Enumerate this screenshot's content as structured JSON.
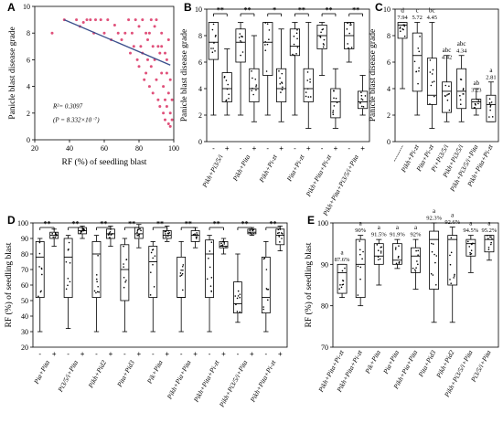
{
  "chart_data": [
    {
      "panel": "A",
      "type": "scatter",
      "ylabel": "Panicle blast disease grade",
      "xlabel": "RF (%) of seedling blast",
      "xlim": [
        20,
        100
      ],
      "ylim": [
        0,
        10
      ],
      "x_ticks": [
        "20",
        "40",
        "60",
        "80",
        "100"
      ],
      "y_ticks": [
        "0",
        "2",
        "4",
        "6",
        "8",
        "10"
      ],
      "fit_line": {
        "x": [
          37,
          98
        ],
        "y": [
          9.0,
          5.6
        ]
      },
      "stat_r2": "R²= 0.3097",
      "stat_p": "(P = 8.332×10⁻⁷)",
      "points": [
        [
          30,
          8.0
        ],
        [
          37,
          9.0
        ],
        [
          44,
          9.0
        ],
        [
          46,
          8.5
        ],
        [
          48,
          8.8
        ],
        [
          50,
          9.0
        ],
        [
          52,
          9.0
        ],
        [
          54,
          8.0
        ],
        [
          55,
          9.0
        ],
        [
          58,
          9.0
        ],
        [
          60,
          8.0
        ],
        [
          62,
          9.0
        ],
        [
          64,
          7.5
        ],
        [
          66,
          8.6
        ],
        [
          68,
          8.0
        ],
        [
          70,
          7.5
        ],
        [
          72,
          8.0
        ],
        [
          74,
          9.0
        ],
        [
          75,
          6.5
        ],
        [
          76,
          8.0
        ],
        [
          77,
          7.0
        ],
        [
          78,
          9.0
        ],
        [
          79,
          6.0
        ],
        [
          80,
          8.5
        ],
        [
          80,
          5.5
        ],
        [
          81,
          7.0
        ],
        [
          82,
          6.5
        ],
        [
          82,
          9.0
        ],
        [
          83,
          4.5
        ],
        [
          84,
          8.0
        ],
        [
          84,
          5.0
        ],
        [
          85,
          6.0
        ],
        [
          85,
          7.5
        ],
        [
          86,
          8.0
        ],
        [
          86,
          4.0
        ],
        [
          87,
          9.0
        ],
        [
          87,
          5.5
        ],
        [
          88,
          7.0
        ],
        [
          88,
          3.5
        ],
        [
          89,
          6.0
        ],
        [
          89,
          8.5
        ],
        [
          90,
          9.0
        ],
        [
          90,
          4.5
        ],
        [
          91,
          7.0
        ],
        [
          91,
          3.0
        ],
        [
          92,
          6.5
        ],
        [
          92,
          2.5
        ],
        [
          93,
          8.0
        ],
        [
          93,
          5.0
        ],
        [
          94,
          4.0
        ],
        [
          94,
          2.0
        ],
        [
          95,
          6.5
        ],
        [
          95,
          3.0
        ],
        [
          95,
          1.5
        ],
        [
          96,
          5.0
        ],
        [
          96,
          2.5
        ],
        [
          97,
          7.5
        ],
        [
          97,
          3.5
        ],
        [
          97,
          1.2
        ],
        [
          98,
          4.5
        ],
        [
          98,
          2.0
        ],
        [
          98,
          1.0
        ],
        [
          99,
          3.0
        ],
        [
          99,
          1.5
        ],
        [
          93,
          7.0
        ],
        [
          96,
          6.0
        ]
      ]
    },
    {
      "panel": "B",
      "type": "box",
      "ylabel": "Panicle blast disease grade",
      "ylim": [
        0,
        10
      ],
      "y_ticks": [
        "0",
        "2",
        "4",
        "6",
        "8",
        "10"
      ],
      "groups": [
        "Pikh+Pi3/5/i",
        "Pikh+Pita",
        "Pikh+Pi-zt",
        "Pita+Pi-zt",
        "Pikh+Pita+Pi-zt",
        "Pikh+Pita+Pi3/5/i+Pita"
      ],
      "signs": [
        "-",
        "+"
      ],
      "sig": [
        "**",
        "**",
        "*",
        "**",
        "**",
        "**"
      ],
      "boxes": [
        {
          "min": 2,
          "q1": 6.2,
          "med": 7.5,
          "q3": 9,
          "max": 9
        },
        {
          "min": 2,
          "q1": 3.0,
          "med": 4.0,
          "q3": 5.2,
          "max": 7.0
        },
        {
          "min": 2,
          "q1": 6.0,
          "med": 7.5,
          "q3": 8.5,
          "max": 9
        },
        {
          "min": 1.5,
          "q1": 3.0,
          "med": 4.0,
          "q3": 5.5,
          "max": 8
        },
        {
          "min": 2,
          "q1": 5.0,
          "med": 7.5,
          "q3": 9,
          "max": 9
        },
        {
          "min": 1.5,
          "q1": 3.0,
          "med": 4.0,
          "q3": 5.5,
          "max": 8.5
        },
        {
          "min": 2,
          "q1": 6.5,
          "med": 7.2,
          "q3": 8.5,
          "max": 9
        },
        {
          "min": 1,
          "q1": 3.0,
          "med": 4.0,
          "q3": 5.5,
          "max": 9
        },
        {
          "min": 5,
          "q1": 7.0,
          "med": 8.0,
          "q3": 8.8,
          "max": 9
        },
        {
          "min": 1,
          "q1": 1.8,
          "med": 3.0,
          "q3": 4.0,
          "max": 5.5
        },
        {
          "min": 6,
          "q1": 7.0,
          "med": 8.0,
          "q3": 9,
          "max": 9
        },
        {
          "min": 2,
          "q1": 2.5,
          "med": 3.0,
          "q3": 3.8,
          "max": 5
        }
      ]
    },
    {
      "panel": "C",
      "type": "box",
      "ylabel": "Panicle blast disease grade",
      "ylim": [
        0,
        10
      ],
      "y_ticks": [
        "0",
        "2",
        "4",
        "6",
        "8",
        "10"
      ],
      "groups": [
        "--------",
        "Pikh+Pi-zt",
        "Pita+Pi-zt",
        "Pi+Pi3/5/i",
        "Pikh+Pi3/5/i",
        "Pikh+Pi3/5/i+Pita",
        "Pikh+Pita+Pi-zt"
      ],
      "letters": [
        "d",
        "c",
        "bc",
        "abc",
        "abc",
        "ab",
        "a"
      ],
      "means": [
        "7.94",
        "5.72",
        "4.45",
        "4.42",
        "4.34",
        "3.23",
        "2.81"
      ],
      "letters_show_mean_below_letter": [
        true,
        true,
        true,
        false,
        true,
        false,
        true
      ],
      "boxes": [
        {
          "min": 4,
          "q1": 7.8,
          "med": 8.8,
          "q3": 9,
          "max": 9
        },
        {
          "min": 2,
          "q1": 3.8,
          "med": 6.5,
          "q3": 8.2,
          "max": 9
        },
        {
          "min": 1,
          "q1": 2.8,
          "med": 3.5,
          "q3": 6.3,
          "max": 9
        },
        {
          "min": 1.5,
          "q1": 2.2,
          "med": 3.8,
          "q3": 4.5,
          "max": 6.5
        },
        {
          "min": 1.5,
          "q1": 2.5,
          "med": 3.8,
          "q3": 5.5,
          "max": 6.5
        },
        {
          "min": 2,
          "q1": 2.5,
          "med": 3.0,
          "q3": 3.2,
          "max": 4.0
        },
        {
          "min": 1.5,
          "q1": 1.5,
          "med": 2.8,
          "q3": 3.5,
          "max": 4.5
        }
      ]
    },
    {
      "panel": "D",
      "type": "box",
      "ylabel": "RF (%) of seedling blast",
      "ylim": [
        20,
        100
      ],
      "y_ticks": [
        "20",
        "30",
        "40",
        "50",
        "60",
        "70",
        "80",
        "90",
        "100"
      ],
      "groups": [
        "Pia+Pita",
        "Pi3/5/i+Pita",
        "Pikh+Pid2",
        "Pita+Pid3",
        "Pik+Pita",
        "Pikh+Pia+Pita",
        "Pikh+Pita+Pi-zt",
        "Pikh+Pi3/5/i+Pita",
        "Pikh+Pita+Pi-zt"
      ],
      "signs": [
        "-",
        "+"
      ],
      "sig": [
        "**",
        "**",
        "**",
        "**",
        "**",
        "**",
        "**",
        "**",
        "**"
      ],
      "boxes": [
        {
          "min": 30,
          "q1": 52,
          "med": 78,
          "q3": 88,
          "max": 90
        },
        {
          "min": 85,
          "q1": 90,
          "med": 92,
          "q3": 94,
          "max": 96
        },
        {
          "min": 32,
          "q1": 52,
          "med": 78,
          "q3": 90,
          "max": 92
        },
        {
          "min": 90,
          "q1": 93,
          "med": 95,
          "q3": 97,
          "max": 98
        },
        {
          "min": 30,
          "q1": 52,
          "med": 80,
          "q3": 88,
          "max": 92
        },
        {
          "min": 85,
          "q1": 90,
          "med": 93,
          "q3": 96,
          "max": 98
        },
        {
          "min": 30,
          "q1": 50,
          "med": 70,
          "q3": 86,
          "max": 90
        },
        {
          "min": 84,
          "q1": 90,
          "med": 93,
          "q3": 97,
          "max": 99
        },
        {
          "min": 30,
          "q1": 52,
          "med": 75,
          "q3": 85,
          "max": 88
        },
        {
          "min": 88,
          "q1": 90,
          "med": 92,
          "q3": 95,
          "max": 98
        },
        {
          "min": 30,
          "q1": 52,
          "med": 52,
          "q3": 78,
          "max": 88
        },
        {
          "min": 84,
          "q1": 88,
          "med": 92,
          "q3": 95,
          "max": 97
        },
        {
          "min": 30,
          "q1": 52,
          "med": 80,
          "q3": 89,
          "max": 92
        },
        {
          "min": 80,
          "q1": 84,
          "med": 85,
          "q3": 88,
          "max": 90
        },
        {
          "min": 36,
          "q1": 42,
          "med": 48,
          "q3": 62,
          "max": 80
        },
        {
          "min": 92,
          "q1": 93,
          "med": 94,
          "q3": 96,
          "max": 97
        },
        {
          "min": 30,
          "q1": 42,
          "med": 52,
          "q3": 78,
          "max": 88
        },
        {
          "min": 82,
          "q1": 86,
          "med": 92,
          "q3": 96,
          "max": 98
        }
      ]
    },
    {
      "panel": "E",
      "type": "box",
      "ylabel": "RF (%) of seedling blast",
      "ylim": [
        70,
        100
      ],
      "y_ticks": [
        "70",
        "80",
        "90",
        "100"
      ],
      "groups": [
        "Pikh+Pita+Pi-zt",
        "Pikh+Pita+Pi-zt",
        "Pik+Pita",
        "Pia+Pita",
        "Pikh+Pia+Pita",
        "Pita+Pid3",
        "Pikh+Pid2",
        "Pikh+Pi3/5/i+Pita",
        "Pi3/5/i+Pita"
      ],
      "letters": [
        "a",
        "a",
        "a",
        "a",
        "a",
        "a",
        "a",
        "a",
        "a"
      ],
      "means": [
        "87.6%",
        "90%",
        "91.5%",
        "91.9%",
        "92%",
        "92.3%",
        "92.6%",
        "94.5%",
        "95.2%"
      ],
      "boxes": [
        {
          "min": 82,
          "q1": 83,
          "med": 88,
          "q3": 90,
          "max": 90
        },
        {
          "min": 80,
          "q1": 82,
          "med": 90,
          "q3": 96,
          "max": 97
        },
        {
          "min": 85,
          "q1": 90,
          "med": 92,
          "q3": 95,
          "max": 96
        },
        {
          "min": 89,
          "q1": 90,
          "med": 91,
          "q3": 95,
          "max": 96
        },
        {
          "min": 84,
          "q1": 88,
          "med": 92,
          "q3": 94,
          "max": 96
        },
        {
          "min": 76,
          "q1": 84,
          "med": 96,
          "q3": 98,
          "max": 100
        },
        {
          "min": 76,
          "q1": 85,
          "med": 96,
          "q3": 97,
          "max": 99
        },
        {
          "min": 88,
          "q1": 92,
          "med": 95,
          "q3": 96,
          "max": 97
        },
        {
          "min": 91,
          "q1": 93,
          "med": 96,
          "q3": 97,
          "max": 97
        }
      ]
    }
  ]
}
